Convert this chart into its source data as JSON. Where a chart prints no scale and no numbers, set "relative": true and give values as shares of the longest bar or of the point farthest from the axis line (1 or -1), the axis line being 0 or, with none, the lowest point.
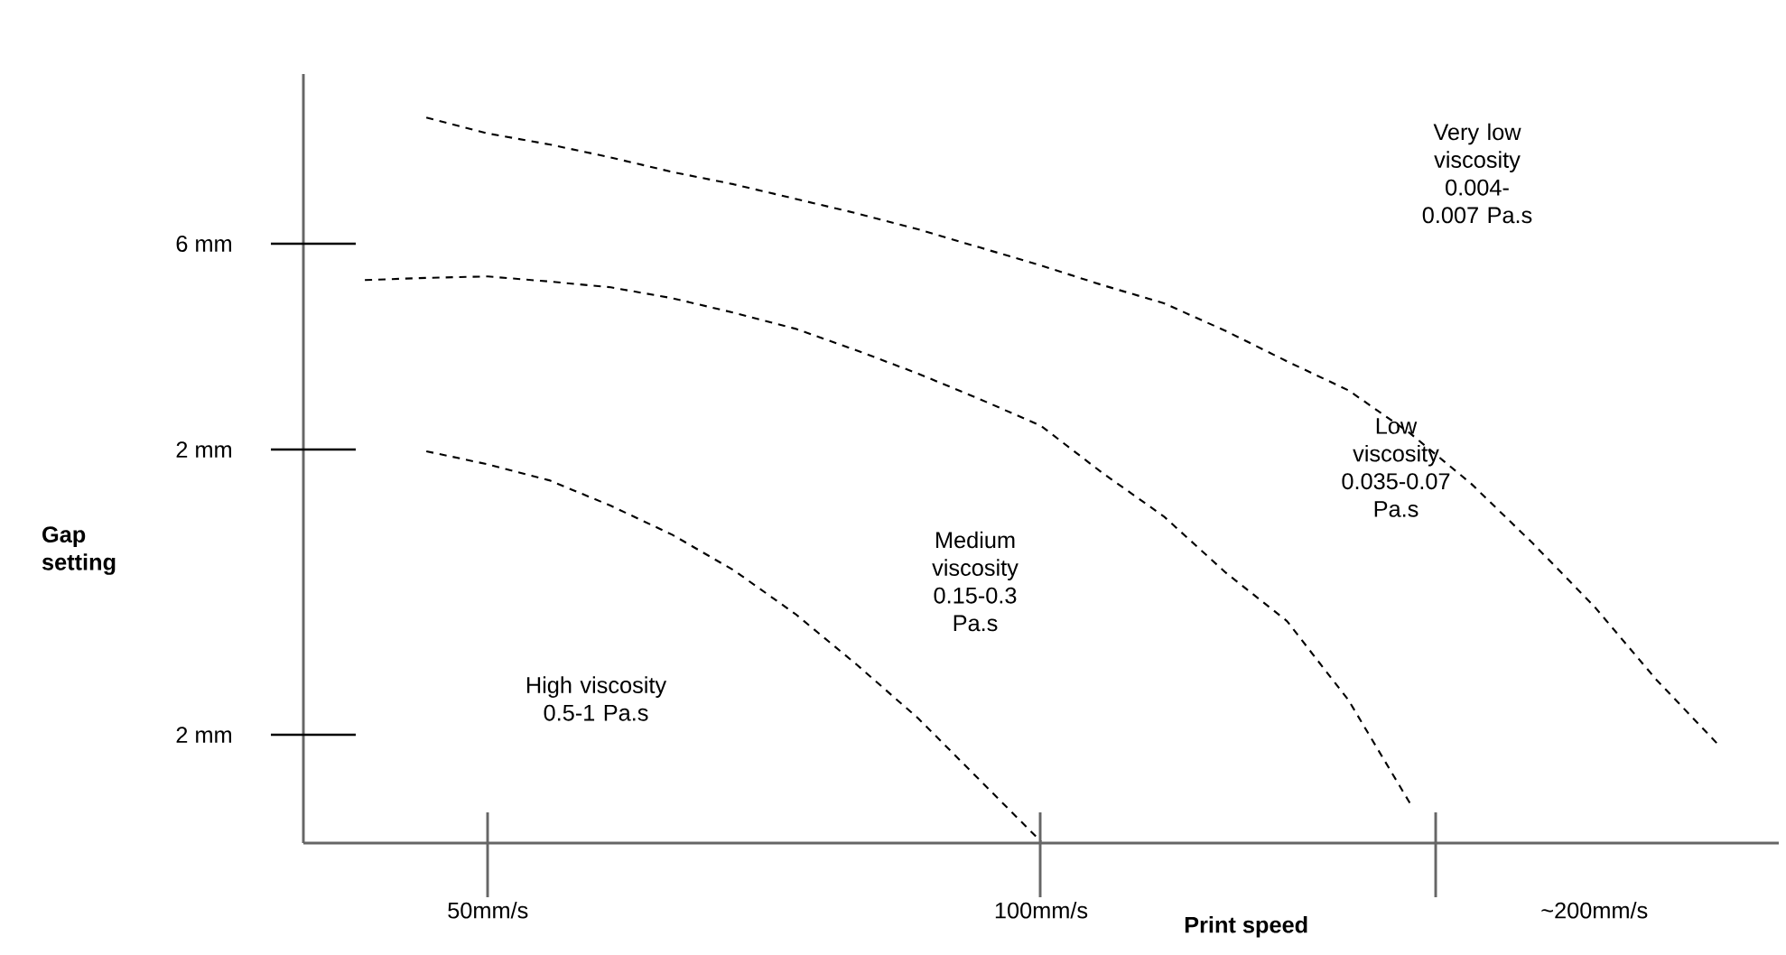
{
  "chart_data": {
    "type": "line",
    "relative": true,
    "xlabel": "Print speed",
    "line_style": "dashed",
    "categories": [
      null,
      null,
      null,
      "50mm/s",
      null,
      null,
      null,
      null,
      null,
      null,
      null,
      null,
      "100mm/s",
      null,
      null,
      null,
      null,
      null,
      null,
      null,
      null,
      "~200mm/s",
      null,
      null,
      null
    ],
    "series": [
      {
        "color": "#000000",
        "values": [
          null,
          null,
          0.54,
          0.522,
          0.5,
          0.465,
          0.425,
          0.376,
          0.316,
          0.246,
          0.172,
          0.087,
          0.002,
          null,
          null,
          null,
          null,
          null,
          null,
          null,
          null,
          null,
          null,
          null,
          null
        ]
      },
      {
        "color": "#000000",
        "values": [
          null,
          0.776,
          0.779,
          0.781,
          0.774,
          0.766,
          0.751,
          0.731,
          0.709,
          0.679,
          0.647,
          0.612,
          0.575,
          0.51,
          0.45,
          0.373,
          0.306,
          0.197,
          0.055,
          null,
          null,
          null,
          null,
          null,
          null
        ]
      },
      {
        "color": "#000000",
        "values": [
          null,
          null,
          1.0,
          0.978,
          0.963,
          0.945,
          0.925,
          0.908,
          0.888,
          0.868,
          0.846,
          0.821,
          0.796,
          0.769,
          0.744,
          0.706,
          0.664,
          0.624,
          0.565,
          0.495,
          0.413,
          0.326,
          0.226,
          0.137,
          null
        ]
      }
    ],
    "annotations": [
      "6 mm",
      "2 mm",
      "2 mm",
      "Gap setting",
      "High viscosity 0.5-1 Pa.s",
      "Medium viscosity 0.15-0.3 Pa.s",
      "Low viscosity 0.035-0.07 Pa.s",
      "Very low viscosity 0.004-0.007 Pa.s"
    ]
  }
}
